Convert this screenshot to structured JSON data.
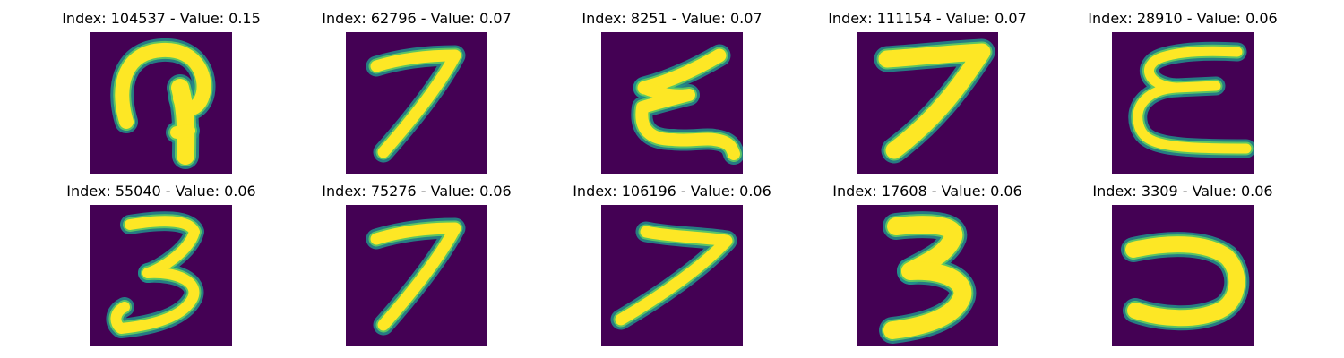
{
  "chart_data": {
    "type": "image-grid",
    "rows": 2,
    "columns": 5,
    "colors": {
      "background": "#440154",
      "glow": "#21918c",
      "mid": "#5ec962",
      "stroke": "#fde725"
    },
    "panels": [
      {
        "title": "Index: 104537 - Value: 0.15",
        "index": 104537,
        "value": 0.15,
        "glyph": "hook-question"
      },
      {
        "title": "Index: 62796 - Value: 0.07",
        "index": 62796,
        "value": 0.07,
        "glyph": "digit-7"
      },
      {
        "title": "Index: 8251 - Value: 0.07",
        "index": 8251,
        "value": 0.07,
        "glyph": "z-like"
      },
      {
        "title": "Index: 111154 - Value: 0.07",
        "index": 111154,
        "value": 0.07,
        "glyph": "digit-7-bold"
      },
      {
        "title": "Index: 28910 - Value: 0.06",
        "index": 28910,
        "value": 0.06,
        "glyph": "epsilon"
      },
      {
        "title": "Index: 55040 - Value: 0.06",
        "index": 55040,
        "value": 0.06,
        "glyph": "digit-3"
      },
      {
        "title": "Index: 75276 - Value: 0.06",
        "index": 75276,
        "value": 0.06,
        "glyph": "digit-7"
      },
      {
        "title": "Index: 106196 - Value: 0.06",
        "index": 106196,
        "value": 0.06,
        "glyph": "angle-7"
      },
      {
        "title": "Index: 17608 - Value: 0.06",
        "index": 17608,
        "value": 0.06,
        "glyph": "digit-3-bold"
      },
      {
        "title": "Index: 3309 - Value: 0.06",
        "index": 3309,
        "value": 0.06,
        "glyph": "reversed-c"
      }
    ]
  }
}
